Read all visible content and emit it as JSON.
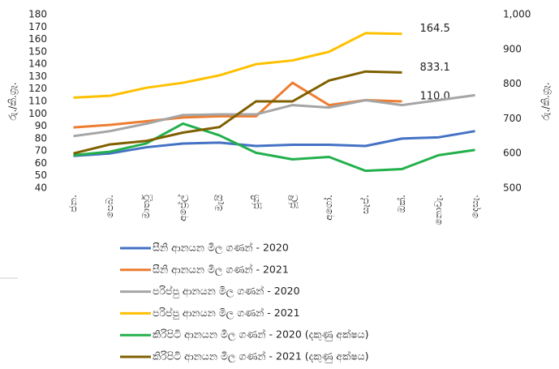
{
  "chart_data": {
    "type": "line",
    "categories": [
      "ජන.",
      "පෙබ.",
      "මාර්තු",
      "අප්‍රේල්",
      "මැයි",
      "ජූනි",
      "ජූලි",
      "අගෝ.",
      "සැප්.",
      "ඔක්.",
      "නොවැ.",
      "දෙසැ."
    ],
    "ylabel": "රු./කි.ග්‍රෑ.",
    "y2label": "රු./කි.ග්‍රෑ.",
    "ylim": [
      40,
      180
    ],
    "yticks": [
      40,
      50,
      60,
      70,
      80,
      90,
      100,
      110,
      120,
      130,
      140,
      150,
      160,
      170,
      180
    ],
    "y2lim": [
      500,
      1000
    ],
    "y2ticks": [
      500,
      600,
      700,
      800,
      900,
      {
        "value": 1000,
        "label": "1,000"
      }
    ],
    "series": [
      {
        "name": "සීනි  ආනයන මිල ගණන් - 2020",
        "color": "#4472c4",
        "values": [
          66,
          68,
          73,
          76,
          76.7,
          74,
          75,
          75,
          74,
          80,
          81,
          86
        ]
      },
      {
        "name": "සීනි  ආනයන මිල ගණන් - 2021",
        "color": "#ed7d31",
        "values": [
          89,
          91,
          94,
          97,
          98,
          98,
          125,
          107,
          111,
          110,
          null,
          null
        ],
        "value_labels": [
          null,
          null,
          null,
          null,
          null,
          null,
          null,
          null,
          null,
          "110.0",
          null,
          null
        ]
      },
      {
        "name": "පරිප්පු ආනයන මිල ගණන් - 2020",
        "color": "#a5a5a5",
        "values": [
          82,
          86,
          92,
          99,
          99.5,
          99.5,
          107,
          105,
          111,
          107,
          111,
          115
        ]
      },
      {
        "name": "පරිප්පු ආනයන මිල ගණන් - 2021",
        "color": "#ffc000",
        "values": [
          113,
          114.5,
          121,
          125,
          131,
          140,
          143,
          150,
          165,
          164.5,
          null,
          null
        ],
        "value_labels": [
          null,
          null,
          null,
          null,
          null,
          null,
          null,
          null,
          null,
          "164.5",
          null,
          null
        ]
      },
      {
        "name": "කිරිපිටි ආනයන මිල ගණන් - 2020 (දකුණු අක්ෂය)",
        "color": "#22b04c",
        "axis": "y2",
        "values": [
          595,
          605,
          629,
          686,
          652,
          602,
          583,
          590,
          550,
          555,
          595,
          610
        ]
      },
      {
        "name": "කිරිපිටි ආනයන මිල ගණන් - 2021 (දකුණු අක්ෂය)",
        "color": "#7f6000",
        "axis": "y2",
        "values": [
          600,
          626,
          636,
          660,
          676,
          750,
          750,
          810,
          836,
          833.1,
          null,
          null
        ],
        "value_labels": [
          null,
          null,
          null,
          null,
          null,
          null,
          null,
          null,
          null,
          "833.1",
          null,
          null
        ]
      }
    ]
  }
}
